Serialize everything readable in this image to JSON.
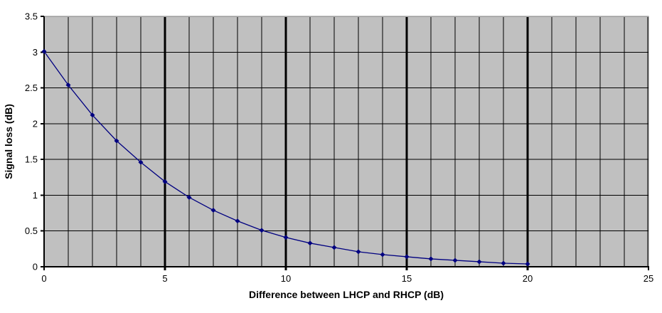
{
  "chart_data": {
    "type": "line",
    "title": "",
    "xlabel": "Difference between LHCP and RHCP (dB)",
    "ylabel": "Signal loss (dB)",
    "x": [
      0,
      1,
      2,
      3,
      4,
      5,
      6,
      7,
      8,
      9,
      10,
      11,
      12,
      13,
      14,
      15,
      16,
      17,
      18,
      19,
      20
    ],
    "y": [
      3.01,
      2.54,
      2.12,
      1.76,
      1.46,
      1.19,
      0.97,
      0.79,
      0.64,
      0.51,
      0.41,
      0.33,
      0.27,
      0.21,
      0.17,
      0.14,
      0.11,
      0.09,
      0.07,
      0.05,
      0.04
    ],
    "xlim": [
      0,
      25
    ],
    "ylim": [
      0,
      3.5
    ],
    "x_major_ticks": [
      0,
      5,
      10,
      15,
      20,
      25
    ],
    "x_tick_labels": [
      "0",
      "5",
      "10",
      "15",
      "20",
      "25"
    ],
    "x_minor_step": 1,
    "y_ticks": [
      0,
      0.5,
      1,
      1.5,
      2,
      2.5,
      3,
      3.5
    ],
    "y_tick_labels": [
      "0",
      "0.5",
      "1",
      "1.5",
      "2",
      "2.5",
      "3",
      "3.5"
    ],
    "grid": "both",
    "legend": "none",
    "marker": "diamond",
    "colors": {
      "background": "#ffffff",
      "plot_bg": "#c0c0c0",
      "plot_border": "#808080",
      "grid": "#000000",
      "axis": "#000000",
      "series": "#000080",
      "text": "#000000"
    }
  }
}
